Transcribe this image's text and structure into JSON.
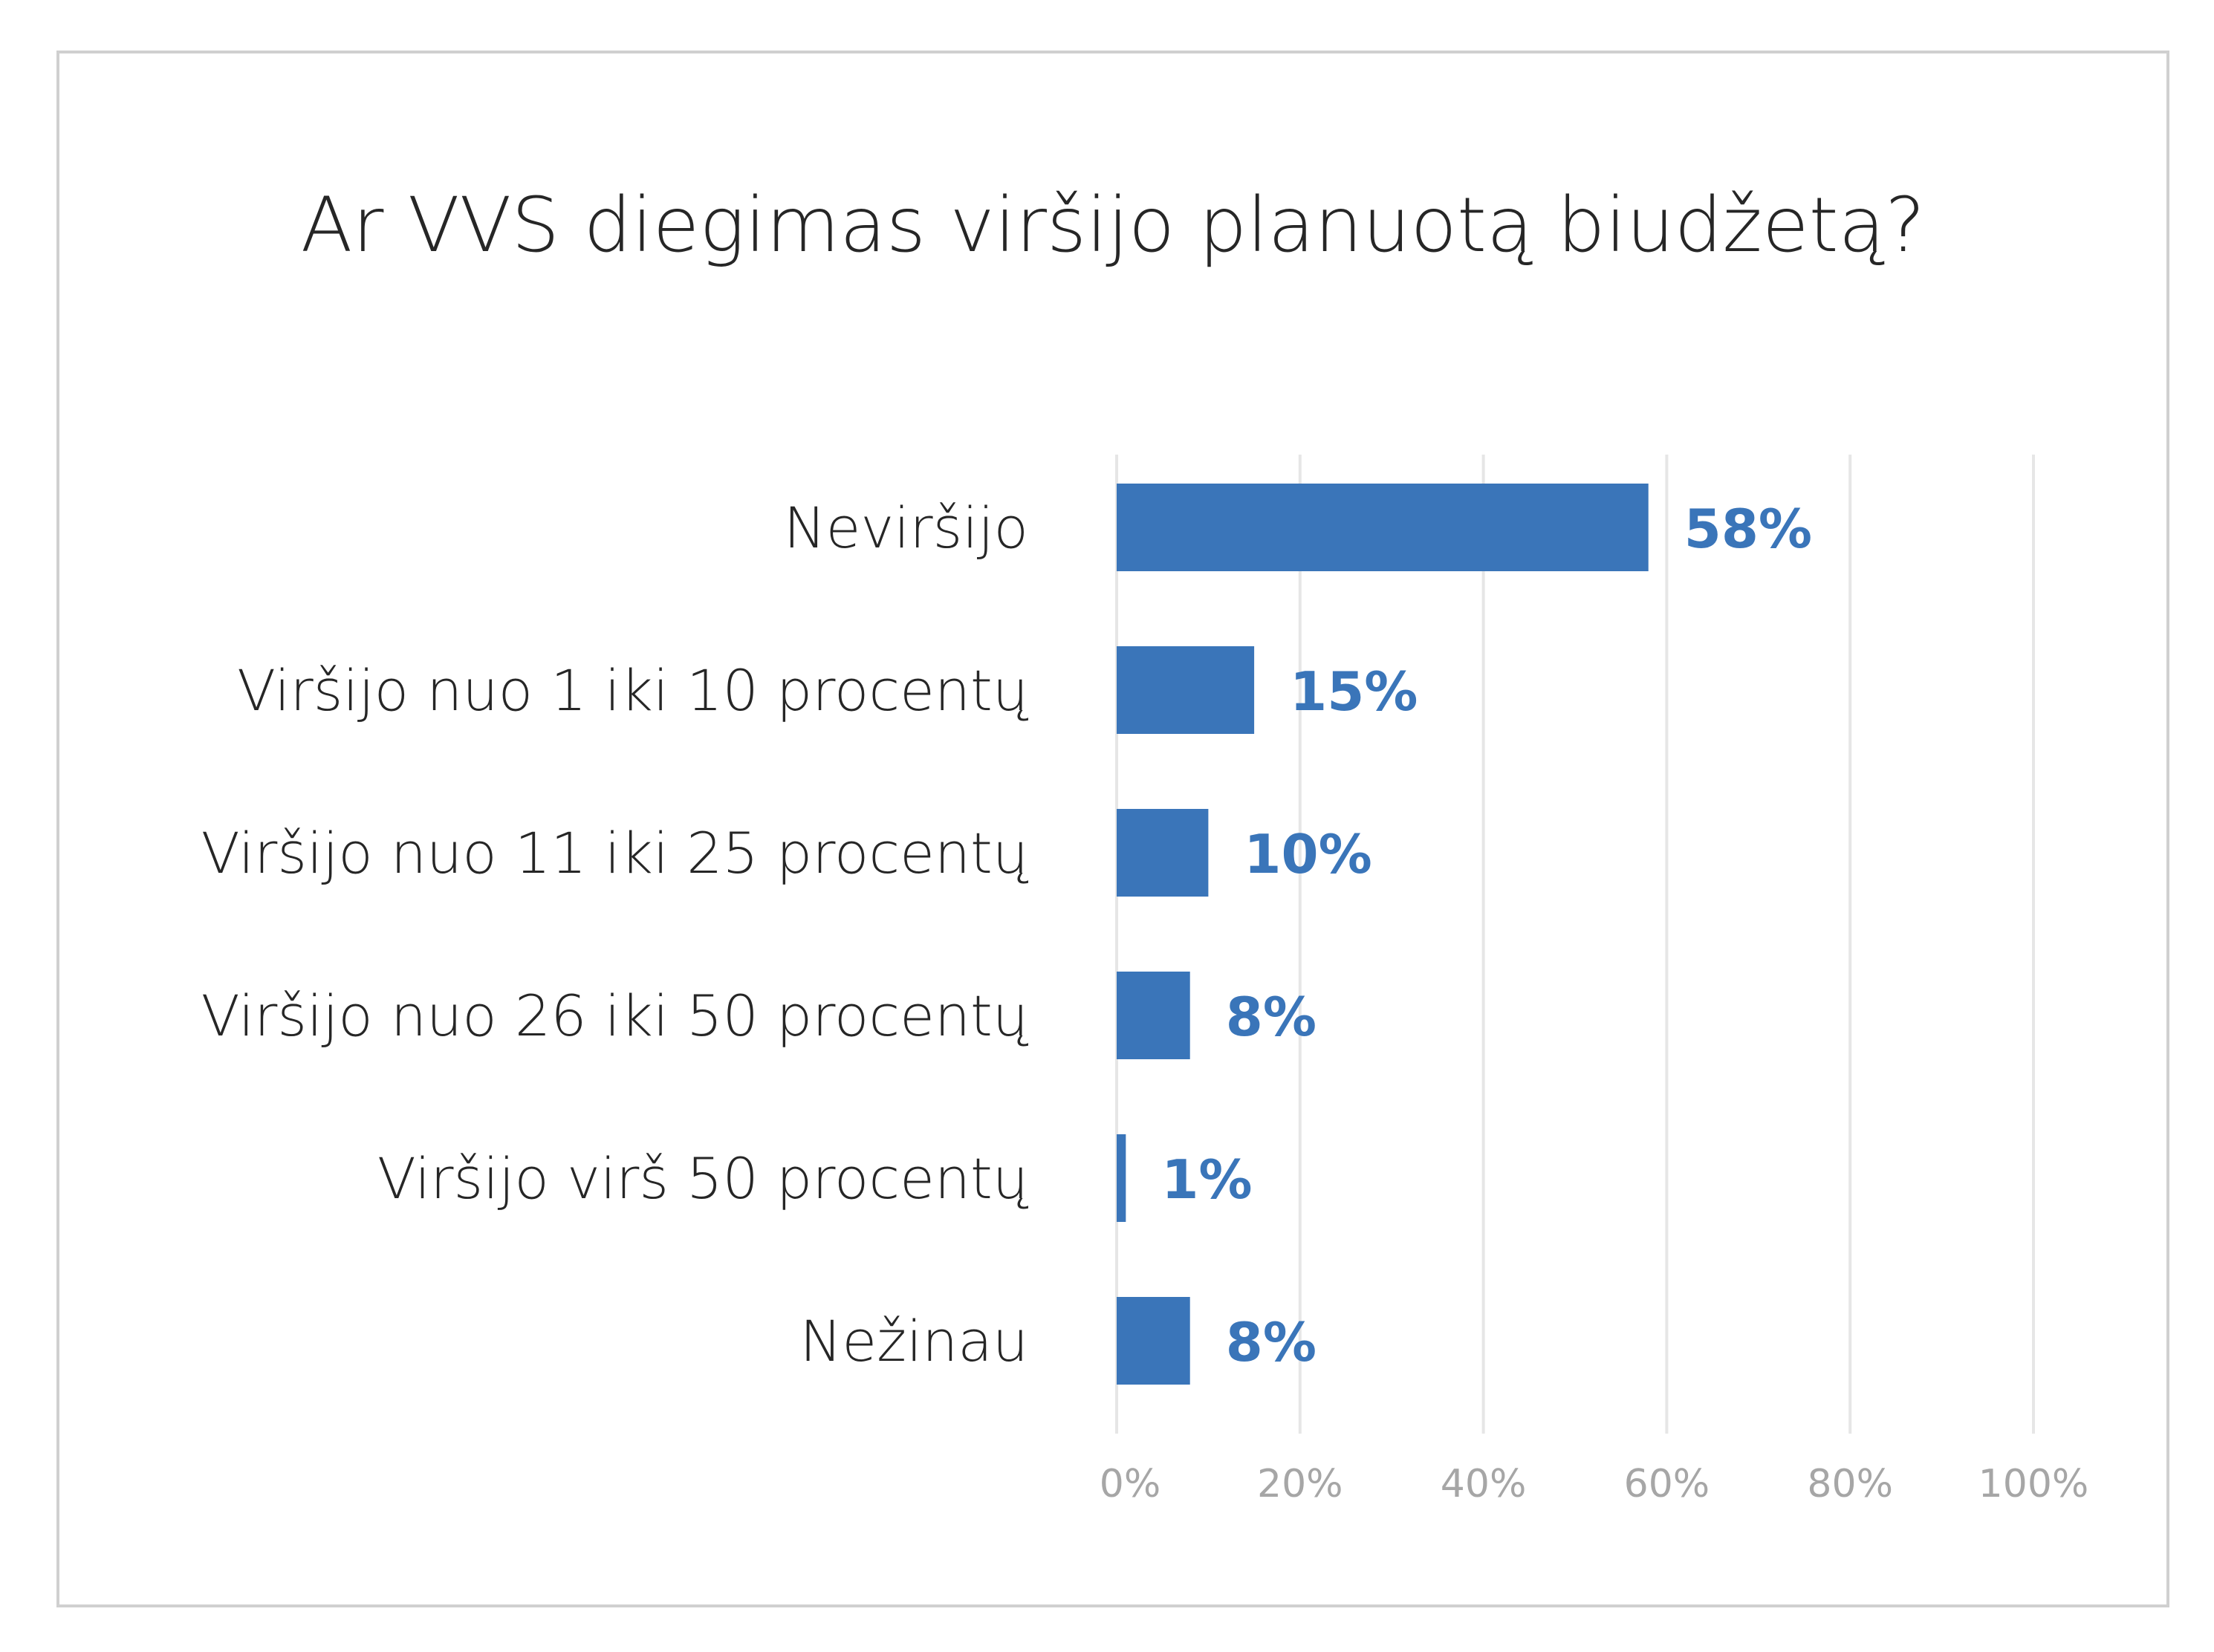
{
  "chart_data": {
    "type": "bar",
    "orientation": "horizontal",
    "title": "Ar VVS diegimas viršijo planuotą biudžetą?",
    "xlabel": "",
    "ylabel": "",
    "categories": [
      "Neviršijo",
      "Viršijo nuo 1 iki 10 procentų",
      "Viršijo nuo 11 iki 25 procentų",
      "Viršijo nuo 26 iki 50 procentų",
      "Viršijo virš 50 procentų",
      "Nežinau"
    ],
    "values": [
      58,
      15,
      10,
      8,
      1,
      8
    ],
    "data_labels": [
      "58%",
      "15%",
      "10%",
      "8%",
      "1%",
      "8%"
    ],
    "xlim": [
      0,
      100
    ],
    "x_ticks": [
      0,
      20,
      40,
      60,
      80,
      100
    ],
    "x_tick_labels": [
      "0%",
      "20%",
      "40%",
      "60%",
      "80%",
      "100%"
    ],
    "grid": true,
    "legend": "none",
    "colors": {
      "bar": "#3a75b9",
      "data_label": "#3a75b9",
      "title": "#262626",
      "category_label": "#262626",
      "tick_label": "#a6a6a6",
      "grid": "#e6e6e6",
      "frame": "#d0d0d0",
      "background": "#ffffff"
    }
  }
}
